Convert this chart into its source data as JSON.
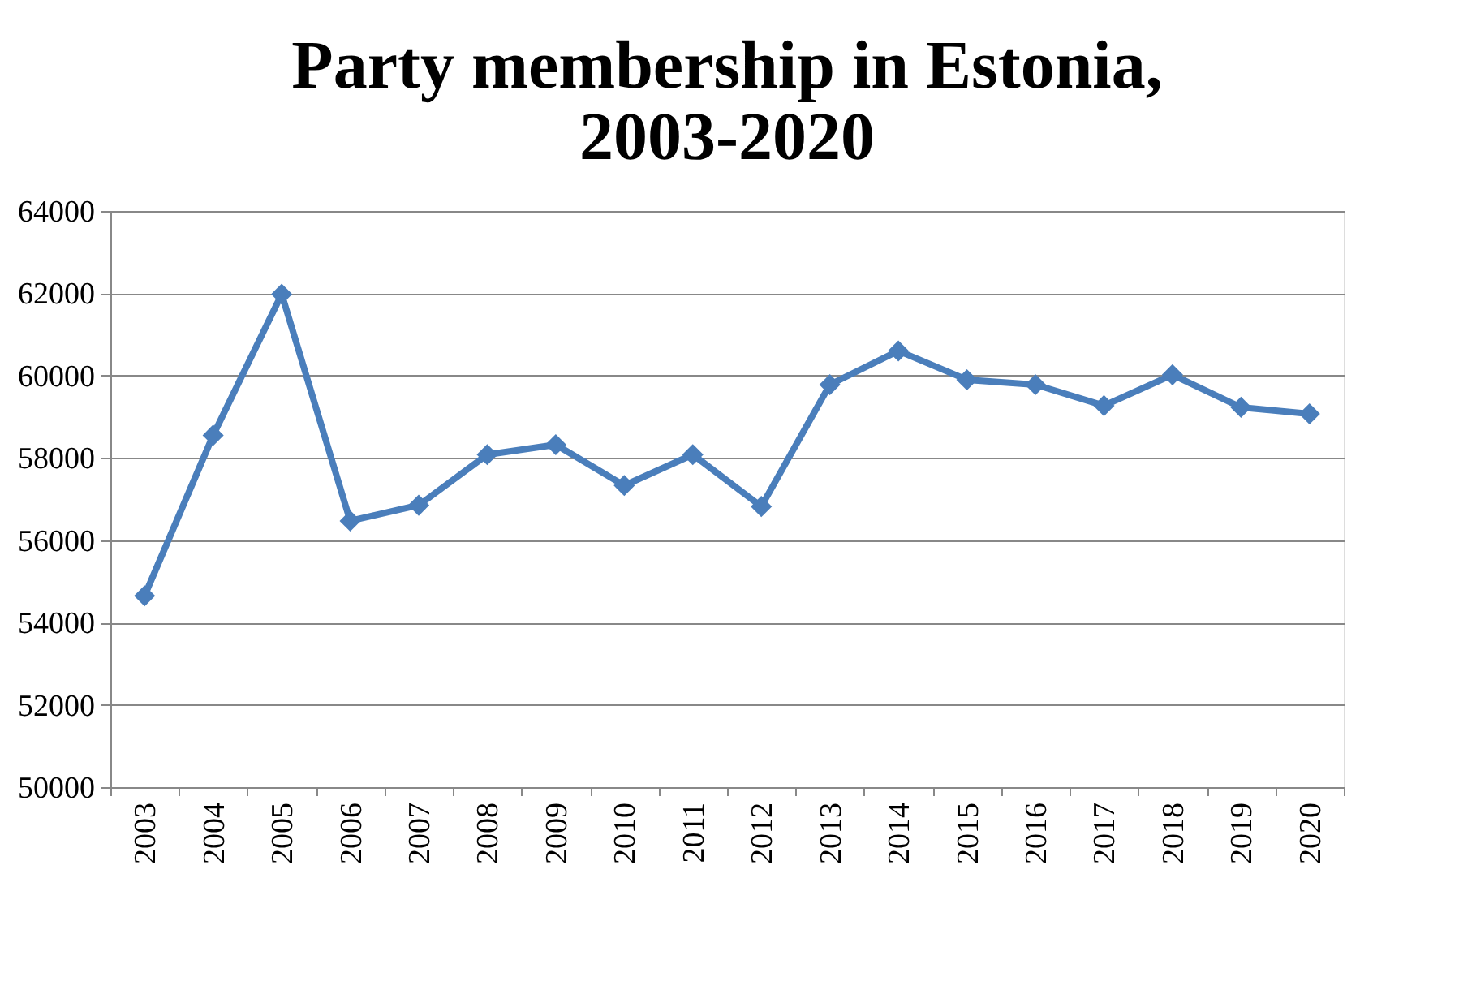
{
  "chart_data": {
    "type": "line",
    "title": "Party membership in Estonia, 2003-2020",
    "categories": [
      "2003",
      "2004",
      "2005",
      "2006",
      "2007",
      "2008",
      "2009",
      "2010",
      "2011",
      "2012",
      "2013",
      "2014",
      "2015",
      "2016",
      "2017",
      "2018",
      "2019",
      "2020"
    ],
    "series": [
      {
        "color": "#4a7ebb",
        "values": [
          54650,
          58550,
          61980,
          56470,
          56850,
          58080,
          58320,
          57330,
          58080,
          56820,
          59780,
          60600,
          59900,
          59780,
          59270,
          60020,
          59230,
          59070
        ]
      }
    ],
    "ylim": [
      50000,
      64000
    ],
    "yticks": [
      50000,
      52000,
      54000,
      56000,
      58000,
      60000,
      62000,
      64000
    ],
    "grid": "y",
    "marker": "diamond",
    "line_style": "solid"
  }
}
